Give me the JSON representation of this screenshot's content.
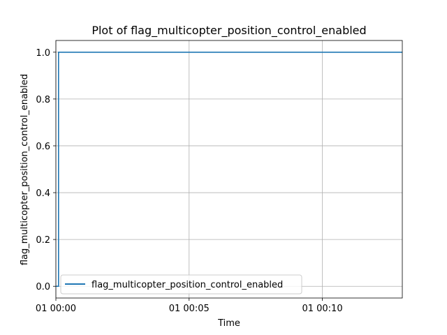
{
  "chart_data": {
    "type": "line",
    "title": "Plot of flag_multicopter_position_control_enabled",
    "xlabel": "Time",
    "ylabel": "flag_multicopter_position_control_enabled",
    "x_ticks": [
      "01 00:00",
      "01 00:05",
      "01 00:10"
    ],
    "y_ticks": [
      "0.0",
      "0.2",
      "0.4",
      "0.6",
      "0.8",
      "1.0"
    ],
    "xlim": [
      "01 00:00:00",
      "01 00:13:00"
    ],
    "ylim": [
      -0.05,
      1.05
    ],
    "grid": true,
    "legend_position": "lower-left",
    "series": [
      {
        "name": "flag_multicopter_position_control_enabled",
        "color": "#1f77b4",
        "x": [
          "01 00:00:00",
          "01 00:00:06",
          "01 00:00:06",
          "01 00:13:00"
        ],
        "y": [
          0.0,
          0.0,
          1.0,
          1.0
        ]
      }
    ]
  }
}
